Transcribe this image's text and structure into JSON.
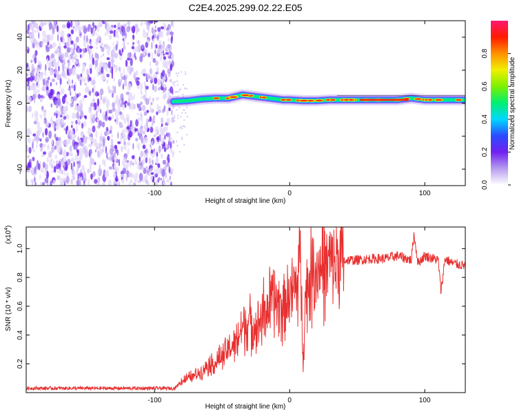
{
  "title": "C2E4.2025.299.02.22.E05",
  "chart_data": [
    {
      "type": "heatmap",
      "title": "C2E4.2025.299.02.22.E05",
      "xlabel": "Height of straight line (km)",
      "ylabel": "Frequency (Hz)",
      "xlim": [
        -195,
        130
      ],
      "ylim": [
        -50,
        50
      ],
      "x_ticks": [
        -100,
        0,
        100
      ],
      "y_ticks": [
        40,
        20,
        0,
        -20,
        -40
      ],
      "noise_region": [
        -195,
        -86
      ],
      "dominant_frequency_track": {
        "x": [
          -86,
          -75,
          -65,
          -55,
          -45,
          -35,
          -25,
          -15,
          -5,
          0,
          10,
          20,
          30,
          40,
          50,
          60,
          70,
          80,
          90,
          100,
          110,
          120,
          130
        ],
        "y": [
          1,
          1.5,
          2.5,
          3,
          3,
          5,
          4,
          3,
          2,
          2,
          1.5,
          1.5,
          2,
          2,
          2,
          2,
          2,
          2,
          3,
          2,
          2,
          2,
          2
        ]
      },
      "colorbar": {
        "label": "Normalized spectral amplitude",
        "range": [
          0,
          1
        ],
        "ticks": [
          0.0,
          0.2,
          0.4,
          0.6,
          0.8
        ],
        "colors": [
          "#ffffff",
          "#b79cf0",
          "#7020f0",
          "#2a4cff",
          "#00d8ff",
          "#00f070",
          "#7cf000",
          "#f0f000",
          "#ff9000",
          "#ff1a00",
          "#ff1a70"
        ]
      }
    },
    {
      "type": "line",
      "xlabel": "Height of straight line (km)",
      "ylabel": "SNR (10 * v/v)",
      "y_scale_note": "(x10",
      "y_scale_exp": "4",
      "y_scale_close": ")",
      "xlim": [
        -195,
        130
      ],
      "ylim": [
        0,
        1.15
      ],
      "x_ticks": [
        -100,
        0,
        100
      ],
      "y_ticks": [
        0.2,
        0.4,
        0.6,
        0.8,
        1.0
      ],
      "series": [
        {
          "name": "SNR",
          "color": "#e83030",
          "x": [
            -195,
            -170,
            -150,
            -130,
            -110,
            -95,
            -85,
            -80,
            -75,
            -70,
            -65,
            -60,
            -55,
            -50,
            -45,
            -40,
            -35,
            -30,
            -25,
            -20,
            -15,
            -10,
            -5,
            0,
            5,
            8,
            10,
            12,
            15,
            20,
            25,
            30,
            35,
            40,
            50,
            60,
            70,
            80,
            90,
            92,
            95,
            100,
            110,
            112,
            115,
            120,
            130
          ],
          "y": [
            0.03,
            0.03,
            0.03,
            0.03,
            0.03,
            0.03,
            0.03,
            0.08,
            0.1,
            0.12,
            0.15,
            0.2,
            0.2,
            0.25,
            0.3,
            0.35,
            0.45,
            0.5,
            0.45,
            0.55,
            0.6,
            0.65,
            0.6,
            0.7,
            0.72,
            0.95,
            0.25,
            0.7,
            0.8,
            0.85,
            0.88,
            0.9,
            0.9,
            0.92,
            0.92,
            0.93,
            0.93,
            0.95,
            0.92,
            1.1,
            0.9,
            0.95,
            0.92,
            0.7,
            0.93,
            0.9,
            0.88
          ]
        }
      ]
    }
  ]
}
